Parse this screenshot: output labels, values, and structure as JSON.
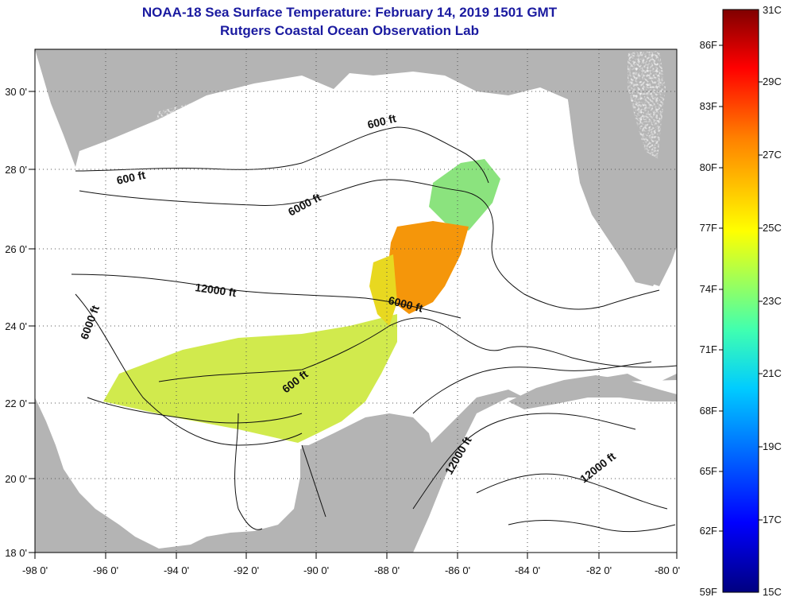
{
  "header": {
    "title": "NOAA-18 Sea Surface Temperature:  February 14, 2019 1501 GMT",
    "subtitle": "Rutgers Coastal Ocean Observation Lab"
  },
  "map": {
    "lat_ticks": [
      "30 0'",
      "28 0'",
      "26 0'",
      "24 0'",
      "22 0'",
      "20 0'",
      "18 0'"
    ],
    "lon_ticks": [
      "-98 0'",
      "-96 0'",
      "-94 0'",
      "-92 0'",
      "-90 0'",
      "-88 0'",
      "-86 0'",
      "-84 0'",
      "-82 0'",
      "-80 0'"
    ],
    "contour_labels": [
      "600 ft",
      "600 ft",
      "6000 ft",
      "12000 ft",
      "6000 ft",
      "600 ft",
      "6000 ft",
      "12000 ft",
      "12000 ft"
    ]
  },
  "colorbar": {
    "fahrenheit": [
      "86F",
      "83F",
      "80F",
      "77F",
      "74F",
      "71F",
      "68F",
      "65F",
      "62F",
      "59F"
    ],
    "celsius": [
      "31C",
      "29C",
      "27C",
      "25C",
      "23C",
      "21C",
      "19C",
      "17C",
      "15C"
    ]
  },
  "colors": {
    "land": "#b4b4b4",
    "cloud_nodata": "#ffffff",
    "title": "#1a1aa0"
  }
}
